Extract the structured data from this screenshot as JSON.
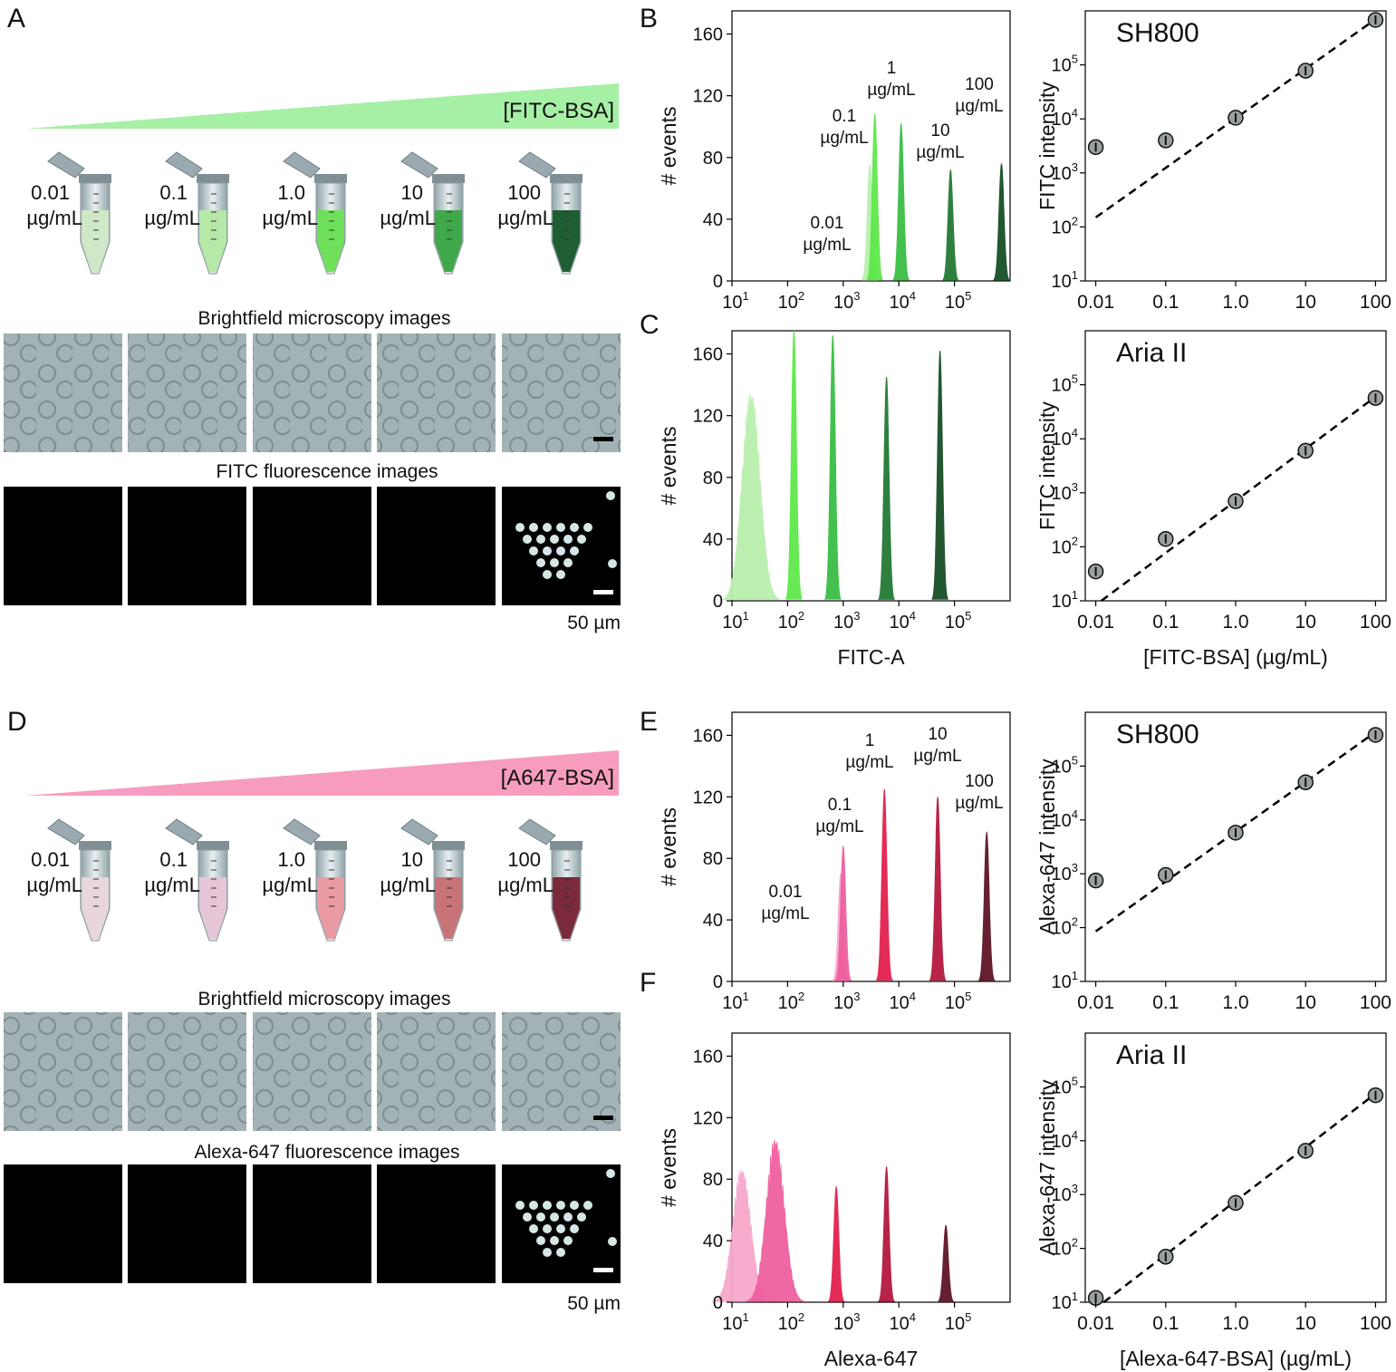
{
  "figure": {
    "panel_letters": [
      "A",
      "B",
      "C",
      "D",
      "E",
      "F"
    ],
    "scale_bar_label": "50 µm"
  },
  "panel_A": {
    "gradient_label": "[FITC-BSA]",
    "gradient_color": "#a6f0a6",
    "tubes": [
      {
        "value": "0.01",
        "unit": "µg/mL",
        "fill": "#cfe8c8"
      },
      {
        "value": "0.1",
        "unit": "µg/mL",
        "fill": "#b6e8a8"
      },
      {
        "value": "1.0",
        "unit": "µg/mL",
        "fill": "#6fe05a"
      },
      {
        "value": "10",
        "unit": "µg/mL",
        "fill": "#3fa84a"
      },
      {
        "value": "100",
        "unit": "µg/mL",
        "fill": "#1f5e33"
      }
    ],
    "brightfield_title": "Brightfield microscopy images",
    "fluorescence_title": "FITC fluorescence images",
    "scale_bar_label": "50 µm"
  },
  "panel_D": {
    "gradient_label": "[A647-BSA]",
    "gradient_color": "#f79cbf",
    "tubes": [
      {
        "value": "0.01",
        "unit": "µg/mL",
        "fill": "#e9d6dc"
      },
      {
        "value": "0.1",
        "unit": "µg/mL",
        "fill": "#e6c6d6"
      },
      {
        "value": "1.0",
        "unit": "µg/mL",
        "fill": "#e99aa2"
      },
      {
        "value": "10",
        "unit": "µg/mL",
        "fill": "#c77377"
      },
      {
        "value": "100",
        "unit": "µg/mL",
        "fill": "#7a2a3a"
      }
    ],
    "brightfield_title": "Brightfield microscopy images",
    "fluorescence_title": "Alexa-647 fluorescence images",
    "scale_bar_label": "50 µm"
  },
  "chart_data": [
    {
      "id": "B-hist",
      "type": "histogram",
      "xscale": "log",
      "xlim": [
        10,
        1000000
      ],
      "ylim": [
        0,
        175
      ],
      "yticks": [
        0,
        40,
        80,
        120,
        160
      ],
      "xlabel": "",
      "ylabel": "# events",
      "peaks": [
        {
          "label_value": "0.01",
          "label_unit": "µg/mL",
          "center": 3000,
          "height": 75,
          "color": "#b9f0ad"
        },
        {
          "label_value": "0.1",
          "label_unit": "µg/mL",
          "center": 3700,
          "height": 108,
          "color": "#5ee84a"
        },
        {
          "label_value": "1",
          "label_unit": "µg/mL",
          "center": 11000,
          "height": 102,
          "color": "#3bbd45"
        },
        {
          "label_value": "10",
          "label_unit": "µg/mL",
          "center": 85000,
          "height": 72,
          "color": "#247a35"
        },
        {
          "label_value": "100",
          "label_unit": "µg/mL",
          "center": 700000,
          "height": 76,
          "color": "#184f26"
        }
      ]
    },
    {
      "id": "B-scatter",
      "type": "scatter",
      "title": "SH800",
      "xscale": "log",
      "yscale": "log",
      "categories": [
        "0.01",
        "0.1",
        "1.0",
        "10",
        "100"
      ],
      "x": [
        0.01,
        0.1,
        1,
        10,
        100
      ],
      "y": [
        3000,
        4000,
        10500,
        78000,
        680000
      ],
      "ylim": [
        10,
        1000000
      ],
      "fit_line": {
        "x": [
          0.01,
          100
        ],
        "y": [
          150,
          700000
        ]
      },
      "xlabel": "",
      "ylabel": "FITC intensity"
    },
    {
      "id": "C-hist",
      "type": "histogram",
      "xscale": "log",
      "xlim": [
        10,
        1000000
      ],
      "ylim": [
        0,
        175
      ],
      "yticks": [
        0,
        40,
        80,
        120,
        160
      ],
      "xlabel": "FITC-A",
      "ylabel": "# events",
      "peaks": [
        {
          "center": 22,
          "height": 140,
          "color": "#b9f0ad",
          "broad": true
        },
        {
          "center": 130,
          "height": 175,
          "color": "#5ee84a"
        },
        {
          "center": 650,
          "height": 172,
          "color": "#3bbd45"
        },
        {
          "center": 6000,
          "height": 145,
          "color": "#247a35"
        },
        {
          "center": 55000,
          "height": 162,
          "color": "#184f26"
        }
      ]
    },
    {
      "id": "C-scatter",
      "type": "scatter",
      "title": "Aria II",
      "xscale": "log",
      "yscale": "log",
      "categories": [
        "0.01",
        "0.1",
        "1.0",
        "10",
        "100"
      ],
      "x": [
        0.01,
        0.1,
        1,
        10,
        100
      ],
      "y": [
        35,
        140,
        700,
        6000,
        57000
      ],
      "ylim": [
        10,
        1000000
      ],
      "fit_line": {
        "x": [
          0.012,
          100
        ],
        "y": [
          10,
          60000
        ]
      },
      "xlabel": "[FITC-BSA] (µg/mL)",
      "ylabel": "FITC intensity"
    },
    {
      "id": "E-hist",
      "type": "histogram",
      "xscale": "log",
      "xlim": [
        10,
        1000000
      ],
      "ylim": [
        0,
        175
      ],
      "yticks": [
        0,
        40,
        80,
        120,
        160
      ],
      "xlabel": "",
      "ylabel": "# events",
      "peaks": [
        {
          "label_value": "0.01",
          "label_unit": "µg/mL",
          "center": 900,
          "height": 70,
          "color": "#f7a8cc"
        },
        {
          "label_value": "0.1",
          "label_unit": "µg/mL",
          "center": 1000,
          "height": 88,
          "color": "#ef5f9f"
        },
        {
          "label_value": "1",
          "label_unit": "µg/mL",
          "center": 5500,
          "height": 125,
          "color": "#e3204f"
        },
        {
          "label_value": "10",
          "label_unit": "µg/mL",
          "center": 50000,
          "height": 120,
          "color": "#b4193f"
        },
        {
          "label_value": "100",
          "label_unit": "µg/mL",
          "center": 380000,
          "height": 97,
          "color": "#5e1526"
        }
      ]
    },
    {
      "id": "E-scatter",
      "type": "scatter",
      "title": "SH800",
      "xscale": "log",
      "yscale": "log",
      "categories": [
        "0.01",
        "0.1",
        "1.0",
        "10",
        "100"
      ],
      "x": [
        0.01,
        0.1,
        1,
        10,
        100
      ],
      "y": [
        750,
        950,
        5800,
        50000,
        380000
      ],
      "ylim": [
        10,
        1000000
      ],
      "fit_line": {
        "x": [
          0.01,
          100
        ],
        "y": [
          85,
          430000
        ]
      },
      "xlabel": "",
      "ylabel": "Alexa-647 intensity"
    },
    {
      "id": "F-hist",
      "type": "histogram",
      "xscale": "log",
      "xlim": [
        10,
        1000000
      ],
      "ylim": [
        0,
        175
      ],
      "yticks": [
        0,
        40,
        80,
        120,
        160
      ],
      "xlabel": "Alexa-647",
      "ylabel": "# events",
      "peaks": [
        {
          "center": 15,
          "height": 90,
          "color": "#f7a8cc",
          "broad": true
        },
        {
          "center": 60,
          "height": 110,
          "color": "#ef5f9f",
          "broad": true
        },
        {
          "center": 750,
          "height": 75,
          "color": "#e3204f"
        },
        {
          "center": 6000,
          "height": 88,
          "color": "#b4193f"
        },
        {
          "center": 70000,
          "height": 50,
          "color": "#5e1526"
        }
      ]
    },
    {
      "id": "F-scatter",
      "type": "scatter",
      "title": "Aria II",
      "xscale": "log",
      "yscale": "log",
      "categories": [
        "0.01",
        "0.1",
        "1.0",
        "10",
        "100"
      ],
      "x": [
        0.01,
        0.1,
        1,
        10,
        100
      ],
      "y": [
        12,
        70,
        700,
        6500,
        70000
      ],
      "ylim": [
        10,
        1000000
      ],
      "fit_line": {
        "x": [
          0.013,
          100
        ],
        "y": [
          10,
          75000
        ]
      },
      "xlabel": "[Alexa-647-BSA] (µg/mL)",
      "ylabel": "Alexa-647 intensity"
    }
  ]
}
